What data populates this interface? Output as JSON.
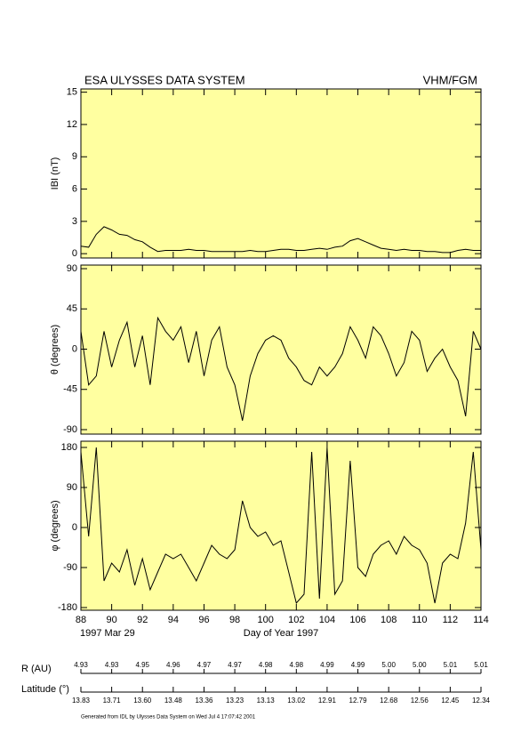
{
  "header": {
    "title": "ESA ULYSSES DATA SYSTEM",
    "instrument": "VHM/FGM"
  },
  "chart_data": [
    {
      "type": "line",
      "ylabel": "IBI (nT)",
      "color": "#000000",
      "background": "#ffffa0",
      "x": [
        88,
        88.5,
        89,
        89.5,
        90,
        90.5,
        91,
        91.5,
        92,
        92.5,
        93,
        93.5,
        94,
        94.5,
        95,
        95.5,
        96,
        96.5,
        97,
        97.5,
        98,
        98.5,
        99,
        99.5,
        100,
        100.5,
        101,
        101.5,
        102,
        102.5,
        103,
        103.5,
        104,
        104.5,
        105,
        105.5,
        106,
        106.5,
        107,
        107.5,
        108,
        108.5,
        109,
        109.5,
        110,
        110.5,
        111,
        111.5,
        112,
        112.5,
        113,
        113.5,
        114
      ],
      "values": [
        0.7,
        0.6,
        1.8,
        2.5,
        2.2,
        1.8,
        1.7,
        1.3,
        1.1,
        0.6,
        0.2,
        0.3,
        0.3,
        0.3,
        0.4,
        0.3,
        0.3,
        0.2,
        0.2,
        0.2,
        0.2,
        0.2,
        0.3,
        0.2,
        0.2,
        0.3,
        0.4,
        0.4,
        0.3,
        0.3,
        0.4,
        0.5,
        0.4,
        0.6,
        0.7,
        1.2,
        1.4,
        1.1,
        0.8,
        0.5,
        0.4,
        0.3,
        0.4,
        0.3,
        0.3,
        0.2,
        0.2,
        0.1,
        0.1,
        0.3,
        0.4,
        0.3,
        0.3
      ],
      "xlim": [
        88,
        114
      ],
      "ylim": [
        -0.4,
        15.3
      ],
      "yticks": [
        0,
        3,
        6,
        9,
        12,
        15
      ]
    },
    {
      "type": "line",
      "ylabel": "θ (degrees)",
      "color": "#000000",
      "background": "#ffffa0",
      "x": [
        88,
        88.5,
        89,
        89.5,
        90,
        90.5,
        91,
        91.5,
        92,
        92.5,
        93,
        93.5,
        94,
        94.5,
        95,
        95.5,
        96,
        96.5,
        97,
        97.5,
        98,
        98.5,
        99,
        99.5,
        100,
        100.5,
        101,
        101.5,
        102,
        102.5,
        103,
        103.5,
        104,
        104.5,
        105,
        105.5,
        106,
        106.5,
        107,
        107.5,
        108,
        108.5,
        109,
        109.5,
        110,
        110.5,
        111,
        111.5,
        112,
        112.5,
        113,
        113.5,
        114
      ],
      "values": [
        20,
        -40,
        -30,
        20,
        -20,
        10,
        30,
        -20,
        15,
        -40,
        35,
        20,
        10,
        25,
        -15,
        20,
        -30,
        10,
        25,
        -20,
        -40,
        -80,
        -30,
        -5,
        10,
        15,
        10,
        -10,
        -20,
        -35,
        -40,
        -20,
        -30,
        -20,
        -5,
        25,
        10,
        -10,
        25,
        15,
        -5,
        -30,
        -15,
        20,
        10,
        -25,
        -10,
        0,
        -20,
        -35,
        -75,
        20,
        0
      ],
      "xlim": [
        88,
        114
      ],
      "ylim": [
        -95,
        94
      ],
      "yticks": [
        -90,
        -45,
        0,
        45,
        90
      ]
    },
    {
      "type": "line",
      "ylabel": "φ (degrees)",
      "xlabel": "Day of Year 1997",
      "start_date": "1997 Mar 29",
      "color": "#000000",
      "background": "#ffffa0",
      "x": [
        88,
        88.5,
        89,
        89.5,
        90,
        90.5,
        91,
        91.5,
        92,
        92.5,
        93,
        93.5,
        94,
        94.5,
        95,
        95.5,
        96,
        96.5,
        97,
        97.5,
        98,
        98.5,
        99,
        99.5,
        100,
        100.5,
        101,
        101.5,
        102,
        102.5,
        103,
        103.5,
        104,
        104.5,
        105,
        105.5,
        106,
        106.5,
        107,
        107.5,
        108,
        108.5,
        109,
        109.5,
        110,
        110.5,
        111,
        111.5,
        112,
        112.5,
        113,
        113.5,
        114
      ],
      "values": [
        170,
        -20,
        180,
        -120,
        -80,
        -100,
        -50,
        -130,
        -70,
        -140,
        -100,
        -60,
        -70,
        -60,
        -90,
        -120,
        -80,
        -40,
        -60,
        -70,
        -50,
        60,
        0,
        -20,
        -10,
        -40,
        -30,
        -100,
        -170,
        -150,
        170,
        -160,
        180,
        -150,
        -120,
        150,
        -90,
        -110,
        -60,
        -40,
        -30,
        -60,
        -20,
        -40,
        -50,
        -80,
        -170,
        -80,
        -60,
        -70,
        10,
        170,
        -50
      ],
      "xlim": [
        88,
        114
      ],
      "ylim": [
        -186,
        194
      ],
      "yticks": [
        -180,
        -90,
        0,
        90,
        180
      ],
      "xticks": [
        88,
        90,
        92,
        94,
        96,
        98,
        100,
        102,
        104,
        106,
        108,
        110,
        112,
        114
      ]
    }
  ],
  "ephemeris": {
    "r_label": "R (AU)",
    "r_values": [
      "4.93",
      "4.93",
      "4.95",
      "4.96",
      "4.97",
      "4.97",
      "4.98",
      "4.98",
      "4.99",
      "4.99",
      "5.00",
      "5.00",
      "5.01",
      "5.01"
    ],
    "latitude_label": "Latitude (°)",
    "latitude_values": [
      "13.83",
      "13.71",
      "13.60",
      "13.48",
      "13.36",
      "13.23",
      "13.13",
      "13.02",
      "12.91",
      "12.79",
      "12.68",
      "12.56",
      "12.45",
      "12.34"
    ]
  },
  "footer": "Generated from IDL by Ulysses Data System on Wed Jul  4 17:07:42 2001"
}
